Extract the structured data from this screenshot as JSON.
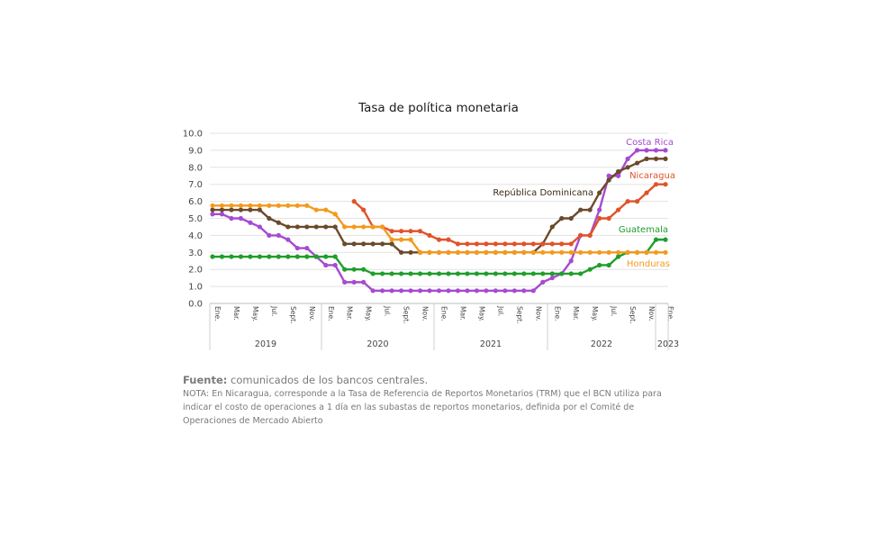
{
  "chart_data": {
    "type": "line",
    "title": "Tasa de política monetaria",
    "ylim": [
      0,
      10
    ],
    "yticks": [
      "0.0",
      "1.0",
      "2.0",
      "3.0",
      "4.0",
      "5.0",
      "6.0",
      "7.0",
      "8.0",
      "9.0",
      "10.0"
    ],
    "months": [
      "Ene.",
      "Mar.",
      "May.",
      "Jul.",
      "Sept.",
      "Nov.",
      "Ene.",
      "Mar.",
      "May.",
      "Jul.",
      "Sept.",
      "Nov.",
      "Ene.",
      "Mar.",
      "May.",
      "Jul.",
      "Sept.",
      "Nov.",
      "Ene.",
      "Mar.",
      "May.",
      "Jul.",
      "Sept.",
      "Nov.",
      "Ene."
    ],
    "years": [
      "2019",
      "2020",
      "2021",
      "2022",
      "2023"
    ],
    "grid": "horizontal",
    "series": [
      {
        "name": "Costa Rica",
        "color": "#a64bd1",
        "start": 0,
        "values": [
          5.25,
          5.25,
          5.0,
          5.0,
          4.75,
          4.5,
          4.0,
          4.0,
          3.75,
          3.25,
          3.25,
          2.75,
          2.25,
          2.25,
          1.25,
          1.25,
          1.25,
          0.75,
          0.75,
          0.75,
          0.75,
          0.75,
          0.75,
          0.75,
          0.75,
          0.75,
          0.75,
          0.75,
          0.75,
          0.75,
          0.75,
          0.75,
          0.75,
          0.75,
          0.75,
          1.25,
          1.5,
          1.75,
          2.5,
          4.0,
          4.0,
          5.5,
          7.5,
          7.5,
          8.5,
          9.0,
          9.0,
          9.0,
          9.0
        ]
      },
      {
        "name": "República Dominicana",
        "color": "#6b4a2b",
        "start": 0,
        "values": [
          5.5,
          5.5,
          5.5,
          5.5,
          5.5,
          5.5,
          5.0,
          4.75,
          4.5,
          4.5,
          4.5,
          4.5,
          4.5,
          4.5,
          3.5,
          3.5,
          3.5,
          3.5,
          3.5,
          3.5,
          3.0,
          3.0,
          3.0,
          3.0,
          3.0,
          3.0,
          3.0,
          3.0,
          3.0,
          3.0,
          3.0,
          3.0,
          3.0,
          3.0,
          3.0,
          3.5,
          4.5,
          5.0,
          5.0,
          5.5,
          5.5,
          6.5,
          7.25,
          7.75,
          8.0,
          8.25,
          8.5,
          8.5,
          8.5
        ]
      },
      {
        "name": "Nicaragua",
        "color": "#e0532a",
        "start": 15,
        "values": [
          6.0,
          5.5,
          4.5,
          4.5,
          4.25,
          4.25,
          4.25,
          4.25,
          4.0,
          3.75,
          3.75,
          3.5,
          3.5,
          3.5,
          3.5,
          3.5,
          3.5,
          3.5,
          3.5,
          3.5,
          3.5,
          3.5,
          3.5,
          3.5,
          4.0,
          4.0,
          5.0,
          5.0,
          5.5,
          6.0,
          6.0,
          6.5,
          7.0,
          7.0
        ]
      },
      {
        "name": "Guatemala",
        "color": "#1f9e2a",
        "start": 0,
        "values": [
          2.75,
          2.75,
          2.75,
          2.75,
          2.75,
          2.75,
          2.75,
          2.75,
          2.75,
          2.75,
          2.75,
          2.75,
          2.75,
          2.75,
          2.0,
          2.0,
          2.0,
          1.75,
          1.75,
          1.75,
          1.75,
          1.75,
          1.75,
          1.75,
          1.75,
          1.75,
          1.75,
          1.75,
          1.75,
          1.75,
          1.75,
          1.75,
          1.75,
          1.75,
          1.75,
          1.75,
          1.75,
          1.75,
          1.75,
          1.75,
          2.0,
          2.25,
          2.25,
          2.75,
          3.0,
          3.0,
          3.0,
          3.75,
          3.75
        ]
      },
      {
        "name": "Honduras",
        "color": "#f39a1e",
        "start": 0,
        "values": [
          5.75,
          5.75,
          5.75,
          5.75,
          5.75,
          5.75,
          5.75,
          5.75,
          5.75,
          5.75,
          5.75,
          5.5,
          5.5,
          5.25,
          4.5,
          4.5,
          4.5,
          4.5,
          4.5,
          3.75,
          3.75,
          3.75,
          3.0,
          3.0,
          3.0,
          3.0,
          3.0,
          3.0,
          3.0,
          3.0,
          3.0,
          3.0,
          3.0,
          3.0,
          3.0,
          3.0,
          3.0,
          3.0,
          3.0,
          3.0,
          3.0,
          3.0,
          3.0,
          3.0,
          3.0,
          3.0,
          3.0,
          3.0,
          3.0
        ]
      }
    ]
  },
  "source_label": "Fuente:",
  "source_text": " comunicados de los bancos centrales.",
  "note_text": "NOTA: En Nicaragua, corresponde a la Tasa de Referencia de Reportos Monetarios (TRM) que el BCN utiliza para indicar el costo de operaciones a 1 día en las subastas de reportos monetarios, definida por el Comité de Operaciones de Mercado Abierto"
}
